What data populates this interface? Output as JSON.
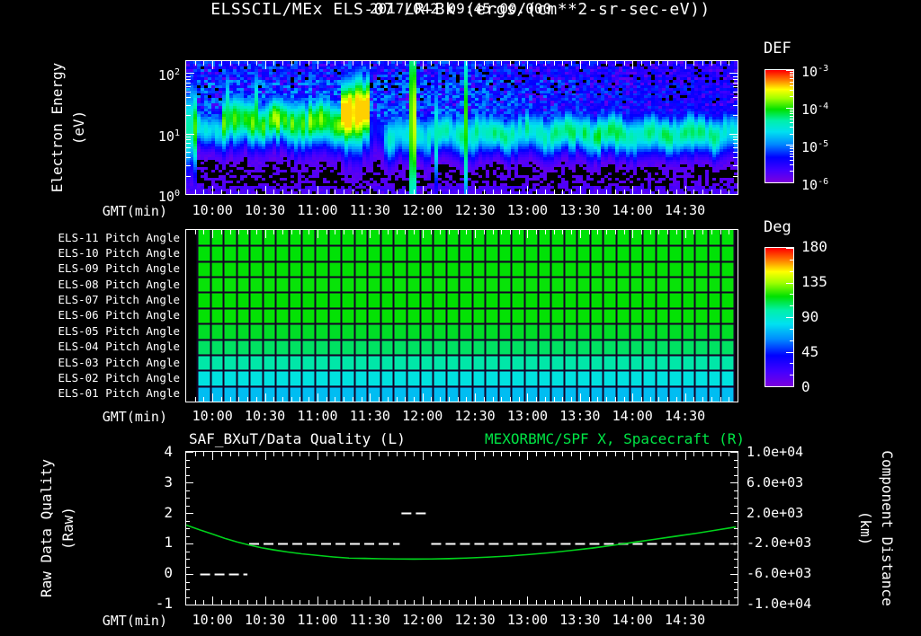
{
  "header": {
    "title_line1": "2017/042 09:45:00.000",
    "title_line2": "ELSSCIL/MEx ELS-07 LR-Bk  (ergs/(cm**2-sr-sec-eV))"
  },
  "colors": {
    "background": "#000000",
    "text": "#ffffff",
    "curve_green": "#00d31c",
    "title_right_green": "#00e545",
    "grid_line": "#140026",
    "colormap_stops": [
      [
        0.0,
        "#7a00dd"
      ],
      [
        0.1,
        "#4400ff"
      ],
      [
        0.22,
        "#0000ff"
      ],
      [
        0.34,
        "#008cff"
      ],
      [
        0.45,
        "#00e1f0"
      ],
      [
        0.55,
        "#00f0aa"
      ],
      [
        0.65,
        "#00e100"
      ],
      [
        0.75,
        "#a0ff00"
      ],
      [
        0.83,
        "#ffff00"
      ],
      [
        0.91,
        "#ff8200"
      ],
      [
        1.0,
        "#ff0000"
      ]
    ]
  },
  "time_axis": {
    "label": "GMT(min)",
    "start_gmt": "09:45",
    "total_min": 315,
    "start_label_min": 15,
    "major_step_min": 30,
    "minor_step_min": 5,
    "tick_labels": [
      "10:00",
      "10:30",
      "11:00",
      "11:30",
      "12:00",
      "12:30",
      "13:00",
      "13:30",
      "14:00",
      "14:30"
    ],
    "tick_minutes": [
      15,
      45,
      75,
      105,
      135,
      165,
      195,
      225,
      255,
      285
    ]
  },
  "labels": {
    "spec_ylabel_line1": "Electron Energy",
    "spec_ylabel_line2": "(eV)",
    "def_title": "DEF",
    "deg_title": "Deg",
    "raw_ylabel_line1": "Raw Data Quality",
    "raw_ylabel_line2": "(Raw)",
    "comp_ylabel_line1": "Component Distance",
    "comp_ylabel_line2": "(km)"
  },
  "chart_data": [
    {
      "id": "electron_spectrogram",
      "type": "heatmap",
      "title": "ELSSCIL/MEx ELS-07 LR-Bk",
      "units": "ergs/(cm**2-sr-sec-eV)",
      "xlabel": "GMT(min)",
      "ylabel": "Electron Energy (eV)",
      "x_range_gmt": [
        "09:45",
        "15:00"
      ],
      "y_scale": "log",
      "y_ticks_exp": [
        2,
        1,
        0
      ],
      "y_log_range": [
        0,
        2.2
      ],
      "colorbar": {
        "title": "DEF",
        "tick_exp": [
          -3,
          -4,
          -5,
          -6
        ],
        "log_range": [
          -6,
          -3
        ]
      },
      "band_profile": [
        {
          "t": [
            0,
            6.5
          ],
          "amp": 0.6,
          "c": 1.05,
          "w": 0.5
        },
        {
          "t": [
            6.5,
            20
          ],
          "amp": 0.45,
          "c": 1.08,
          "w": 0.22
        },
        {
          "t": [
            20,
            88
          ],
          "amp": 0.68,
          "c": 1.2,
          "w": 0.28,
          "streaks": true
        },
        {
          "t": [
            88,
            105
          ],
          "amp": 0.9,
          "c": 1.35,
          "w": 0.42
        },
        {
          "t": [
            105,
            113
          ],
          "amp": 0.22,
          "c": 1.1,
          "w": 0.3
        },
        {
          "t": [
            113,
            128.5
          ],
          "amp": 0.48,
          "c": 0.95,
          "w": 0.28
        },
        {
          "t": [
            128.5,
            131.5
          ],
          "amp": 0.72,
          "c": 1.2,
          "w": 1.3
        },
        {
          "t": [
            131.5,
            142
          ],
          "amp": 0.5,
          "c": 1.0,
          "w": 0.26
        },
        {
          "t": [
            142,
            145
          ],
          "amp": 0.6,
          "c": 1.0,
          "w": 0.55
        },
        {
          "t": [
            145,
            158
          ],
          "amp": 0.52,
          "c": 1.0,
          "w": 0.24
        },
        {
          "t": [
            158,
            160.5
          ],
          "amp": 0.68,
          "c": 1.3,
          "w": 1.1
        },
        {
          "t": [
            160.5,
            315
          ],
          "amp": 0.55,
          "c": 1.0,
          "w": 0.24
        }
      ],
      "noise": {
        "upper_amp": 0.29,
        "upper_fade_after_min": 140,
        "speckle_black": 0.08,
        "speckle_dim": 0.1,
        "lower_density": 0.4
      }
    },
    {
      "id": "pitch_angle_panel",
      "type": "heatmap",
      "colorbar": {
        "title": "Deg",
        "ticks": [
          "180",
          "135",
          "90",
          "45",
          "0"
        ],
        "range": [
          0,
          180
        ]
      },
      "columns": 41,
      "rows": [
        {
          "label": "ELS-11 Pitch Angle",
          "value_deg": 107,
          "color": "#00e306"
        },
        {
          "label": "ELS-10 Pitch Angle",
          "value_deg": 106,
          "color": "#00e206"
        },
        {
          "label": "ELS-09 Pitch Angle",
          "value_deg": 105,
          "color": "#02e002"
        },
        {
          "label": "ELS-08 Pitch Angle",
          "value_deg": 104,
          "color": "#08e308"
        },
        {
          "label": "ELS-07 Pitch Angle",
          "value_deg": 102,
          "color": "#00df00"
        },
        {
          "label": "ELS-06 Pitch Angle",
          "value_deg": 100,
          "color": "#04e204"
        },
        {
          "label": "ELS-05 Pitch Angle",
          "value_deg": 97,
          "color": "#00dd26"
        },
        {
          "label": "ELS-04 Pitch Angle",
          "value_deg": 91,
          "color": "#00e262"
        },
        {
          "label": "ELS-03 Pitch Angle",
          "value_deg": 83,
          "color": "#00e7a8"
        },
        {
          "label": "ELS-02 Pitch Angle",
          "value_deg": 73,
          "color": "#00e2e0"
        },
        {
          "label": "ELS-01 Pitch Angle",
          "value_deg": 64,
          "color": "#00bdf2"
        }
      ]
    },
    {
      "id": "quality_and_distance",
      "type": "line",
      "title_left": "SAF_BXuT/Data Quality (L)",
      "title_right": "MEXORBMC/SPF X, Spacecraft (R)",
      "ylabel_left": "Raw Data Quality (Raw)",
      "ylabel_right": "Component Distance (km)",
      "ylim_left": [
        -1,
        4
      ],
      "ylim_right": [
        -10000,
        10000
      ],
      "yticks_left": [
        "4",
        "3",
        "2",
        "1",
        "0",
        "-1"
      ],
      "yticks_right": [
        "1.0e+04",
        "6.0e+03",
        "2.0e+03",
        "-2.0e+03",
        "-6.0e+03",
        "-1.0e+04"
      ],
      "quality_segments": [
        {
          "value": 0,
          "t": [
            8,
            35
          ]
        },
        {
          "value": 1,
          "t": [
            36,
            122
          ]
        },
        {
          "value": 2,
          "t": [
            123,
            139
          ]
        },
        {
          "value": 1,
          "t": [
            140,
            314
          ]
        }
      ],
      "distance_series": {
        "name": "MEXORBMC/SPF X",
        "t_min": [
          0,
          8,
          15,
          22,
          29,
          36,
          43,
          50,
          58,
          66,
          75,
          84,
          93,
          102,
          111,
          120,
          130,
          140,
          150,
          160,
          172,
          184,
          196,
          208,
          220,
          232,
          244,
          256,
          268,
          280,
          292,
          304,
          314
        ],
        "km": [
          400,
          -240,
          -760,
          -1320,
          -1800,
          -2200,
          -2560,
          -2840,
          -3120,
          -3360,
          -3560,
          -3760,
          -3920,
          -3960,
          -4000,
          -4030,
          -4040,
          -4030,
          -3990,
          -3920,
          -3800,
          -3640,
          -3440,
          -3200,
          -2920,
          -2600,
          -2240,
          -1840,
          -1440,
          -1040,
          -640,
          -200,
          160
        ]
      }
    }
  ]
}
